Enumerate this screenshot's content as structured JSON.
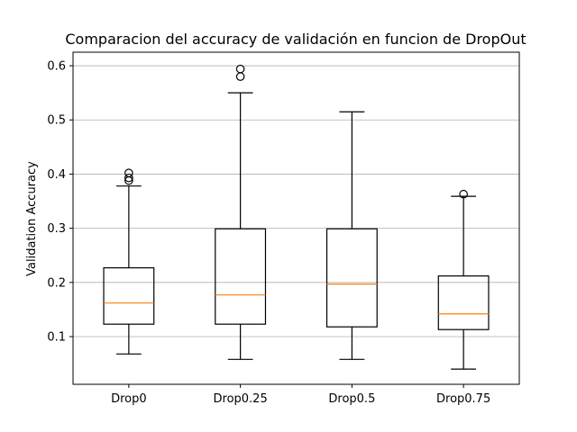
{
  "chart_data": {
    "type": "boxplot",
    "title": "Comparacion del accuracy de validación en funcion de DropOut",
    "xlabel": "",
    "ylabel": "Validation Accuracy",
    "ylim": [
      0.012,
      0.625
    ],
    "yticks": [
      0.1,
      0.2,
      0.3,
      0.4,
      0.5,
      0.6
    ],
    "ytick_labels": [
      "0.1",
      "0.2",
      "0.3",
      "0.4",
      "0.5",
      "0.6"
    ],
    "grid": "horizontal",
    "categories": [
      "Drop0",
      "Drop0.25",
      "Drop0.5",
      "Drop0.75"
    ],
    "boxes": [
      {
        "whisker_low": 0.068,
        "q1": 0.123,
        "median": 0.162,
        "q3": 0.227,
        "whisker_high": 0.378,
        "outliers": [
          0.388,
          0.393,
          0.402
        ]
      },
      {
        "whisker_low": 0.058,
        "q1": 0.123,
        "median": 0.177,
        "q3": 0.299,
        "whisker_high": 0.55,
        "outliers": [
          0.58,
          0.594
        ]
      },
      {
        "whisker_low": 0.058,
        "q1": 0.118,
        "median": 0.197,
        "q3": 0.299,
        "whisker_high": 0.515,
        "outliers": []
      },
      {
        "whisker_low": 0.04,
        "q1": 0.113,
        "median": 0.142,
        "q3": 0.212,
        "whisker_high": 0.359,
        "outliers": [
          0.363
        ]
      }
    ],
    "colors": {
      "box": "#000000",
      "median": "#ff7f0e",
      "grid": "#b0b0b0",
      "outlier": "#000000"
    }
  }
}
